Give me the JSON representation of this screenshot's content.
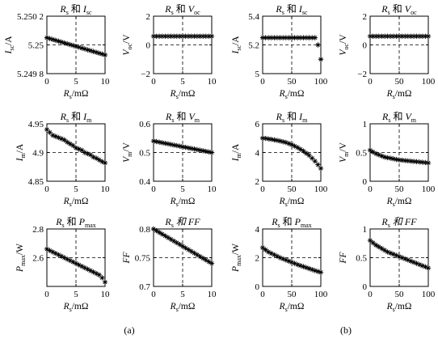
{
  "figure": {
    "caption_a": "(a)",
    "caption_b": "(b)"
  },
  "chart_data": [
    {
      "id": "a1",
      "type": "scatter",
      "title": "Rs 和 Isc",
      "xlabel": "Rs/mΩ",
      "ylabel": "Isc/A",
      "xlim": [
        0,
        10
      ],
      "ylim": [
        5.2498,
        5.2502
      ],
      "xticks": [
        0,
        5,
        10
      ],
      "yticks": [
        5.2498,
        5.25,
        5.2502
      ],
      "ytick_labels": [
        "5.249 8",
        "5.25",
        "5.250 2"
      ],
      "dashed_x": 5,
      "dashed_y": 5.25,
      "x": [
        0,
        0.5,
        1,
        1.5,
        2,
        2.5,
        3,
        3.5,
        4,
        4.5,
        5,
        5.5,
        6,
        6.5,
        7,
        7.5,
        8,
        8.5,
        9,
        9.5,
        10
      ],
      "y": [
        5.25005,
        5.250044,
        5.250038,
        5.250032,
        5.250026,
        5.25002,
        5.250014,
        5.250008,
        5.250002,
        5.249996,
        5.24999,
        5.249984,
        5.249978,
        5.249972,
        5.249966,
        5.24996,
        5.249954,
        5.249948,
        5.249942,
        5.249936,
        5.24993
      ]
    },
    {
      "id": "a2",
      "type": "scatter",
      "title": "Rs 和 Voc",
      "xlabel": "Rs/mΩ",
      "ylabel": "Voc/V",
      "xlim": [
        0,
        10
      ],
      "ylim": [
        -2,
        2
      ],
      "xticks": [
        0,
        5,
        10
      ],
      "yticks": [
        -2,
        0,
        2
      ],
      "dashed_x": 5,
      "dashed_y": 0,
      "x": [
        0,
        0.5,
        1,
        1.5,
        2,
        2.5,
        3,
        3.5,
        4,
        4.5,
        5,
        5.5,
        6,
        6.5,
        7,
        7.5,
        8,
        8.5,
        9,
        9.5,
        10
      ],
      "y": [
        0.6,
        0.6,
        0.6,
        0.6,
        0.6,
        0.6,
        0.6,
        0.6,
        0.6,
        0.6,
        0.6,
        0.6,
        0.6,
        0.6,
        0.6,
        0.6,
        0.6,
        0.6,
        0.6,
        0.6,
        0.6
      ]
    },
    {
      "id": "b1",
      "type": "scatter",
      "title": "Rs 和 Isc",
      "xlabel": "Rs/mΩ",
      "ylabel": "Isc/A",
      "xlim": [
        0,
        100
      ],
      "ylim": [
        5,
        5.4
      ],
      "xticks": [
        0,
        50,
        100
      ],
      "yticks": [
        5,
        5.2,
        5.4
      ],
      "dashed_x": 50,
      "dashed_y": 5.2,
      "x": [
        0,
        5,
        10,
        15,
        20,
        25,
        30,
        35,
        40,
        45,
        50,
        55,
        60,
        65,
        70,
        75,
        80,
        85,
        90,
        95,
        100
      ],
      "y": [
        5.25,
        5.25,
        5.25,
        5.25,
        5.25,
        5.25,
        5.25,
        5.25,
        5.25,
        5.25,
        5.25,
        5.25,
        5.25,
        5.25,
        5.25,
        5.25,
        5.25,
        5.25,
        5.25,
        5.2,
        5.1
      ]
    },
    {
      "id": "b2",
      "type": "scatter",
      "title": "Rs 和 Voc",
      "xlabel": "Rs/mΩ",
      "ylabel": "Voc/V",
      "xlim": [
        0,
        100
      ],
      "ylim": [
        -2,
        2
      ],
      "xticks": [
        0,
        50,
        100
      ],
      "yticks": [
        -2,
        0,
        2
      ],
      "dashed_x": 50,
      "dashed_y": 0,
      "x": [
        0,
        5,
        10,
        15,
        20,
        25,
        30,
        35,
        40,
        45,
        50,
        55,
        60,
        65,
        70,
        75,
        80,
        85,
        90,
        95,
        100
      ],
      "y": [
        0.6,
        0.6,
        0.6,
        0.6,
        0.6,
        0.6,
        0.6,
        0.6,
        0.6,
        0.6,
        0.6,
        0.6,
        0.6,
        0.6,
        0.6,
        0.6,
        0.6,
        0.6,
        0.6,
        0.6,
        0.6
      ]
    },
    {
      "id": "a3",
      "type": "scatter",
      "title": "Rs 和 Im",
      "xlabel": "Rs/mΩ",
      "ylabel": "Im/A",
      "xlim": [
        0,
        10
      ],
      "ylim": [
        4.85,
        4.95
      ],
      "xticks": [
        0,
        5,
        10
      ],
      "yticks": [
        4.85,
        4.9,
        4.95
      ],
      "dashed_x": 5,
      "dashed_y": 4.9,
      "x": [
        0,
        0.5,
        1,
        1.5,
        2,
        2.5,
        3,
        3.5,
        4,
        4.5,
        5,
        5.5,
        6,
        6.5,
        7,
        7.5,
        8,
        8.5,
        9,
        9.5,
        10
      ],
      "y": [
        4.94,
        4.935,
        4.93,
        4.928,
        4.926,
        4.924,
        4.922,
        4.918,
        4.915,
        4.912,
        4.908,
        4.906,
        4.904,
        4.9,
        4.898,
        4.896,
        4.892,
        4.89,
        4.887,
        4.884,
        4.882
      ]
    },
    {
      "id": "a4",
      "type": "scatter",
      "title": "Rs 和 Vm",
      "xlabel": "Rs/mΩ",
      "ylabel": "Vm/V",
      "xlim": [
        0,
        10
      ],
      "ylim": [
        0.4,
        0.6
      ],
      "xticks": [
        0,
        5,
        10
      ],
      "yticks": [
        0.4,
        0.5,
        0.6
      ],
      "dashed_x": 5,
      "dashed_y": 0.5,
      "x": [
        0,
        0.5,
        1,
        1.5,
        2,
        2.5,
        3,
        3.5,
        4,
        4.5,
        5,
        5.5,
        6,
        6.5,
        7,
        7.5,
        8,
        8.5,
        9,
        9.5,
        10
      ],
      "y": [
        0.54,
        0.538,
        0.536,
        0.534,
        0.532,
        0.53,
        0.528,
        0.526,
        0.524,
        0.522,
        0.52,
        0.518,
        0.516,
        0.514,
        0.512,
        0.51,
        0.508,
        0.506,
        0.504,
        0.502,
        0.5
      ]
    },
    {
      "id": "b3",
      "type": "scatter",
      "title": "Rs 和 Im",
      "xlabel": "Rs/mΩ",
      "ylabel": "Im/A",
      "xlim": [
        0,
        100
      ],
      "ylim": [
        2,
        6
      ],
      "xticks": [
        0,
        50,
        100
      ],
      "yticks": [
        2,
        4,
        6
      ],
      "dashed_x": 50,
      "dashed_y": 4,
      "x": [
        0,
        5,
        10,
        15,
        20,
        25,
        30,
        35,
        40,
        45,
        50,
        55,
        60,
        65,
        70,
        75,
        80,
        85,
        90,
        95,
        100
      ],
      "y": [
        5.0,
        4.98,
        4.95,
        4.92,
        4.88,
        4.84,
        4.8,
        4.75,
        4.7,
        4.62,
        4.55,
        4.45,
        4.35,
        4.22,
        4.1,
        3.95,
        3.8,
        3.6,
        3.4,
        3.15,
        2.9
      ]
    },
    {
      "id": "b4",
      "type": "scatter",
      "title": "Rs 和 Vm",
      "xlabel": "Rs/mΩ",
      "ylabel": "Vm/V",
      "xlim": [
        0,
        100
      ],
      "ylim": [
        0,
        1
      ],
      "xticks": [
        0,
        50,
        100
      ],
      "yticks": [
        0,
        0.5,
        1
      ],
      "dashed_x": 50,
      "dashed_y": 0.5,
      "x": [
        0,
        5,
        10,
        15,
        20,
        25,
        30,
        35,
        40,
        45,
        50,
        55,
        60,
        65,
        70,
        75,
        80,
        85,
        90,
        95,
        100
      ],
      "y": [
        0.54,
        0.51,
        0.48,
        0.46,
        0.44,
        0.42,
        0.41,
        0.4,
        0.39,
        0.38,
        0.37,
        0.365,
        0.36,
        0.355,
        0.35,
        0.345,
        0.34,
        0.335,
        0.33,
        0.325,
        0.32
      ]
    },
    {
      "id": "a5",
      "type": "scatter",
      "title": "Rs 和 Pmax",
      "xlabel": "Rs/mΩ",
      "ylabel": "Pmax/W",
      "xlim": [
        0,
        10
      ],
      "ylim": [
        2.4,
        2.8
      ],
      "xticks": [
        0,
        5,
        10
      ],
      "yticks": [
        2.6,
        2.8
      ],
      "dashed_x": 5,
      "dashed_y": 2.6,
      "x": [
        0,
        0.5,
        1,
        1.5,
        2,
        2.5,
        3,
        3.5,
        4,
        4.5,
        5,
        5.5,
        6,
        6.5,
        7,
        7.5,
        8,
        8.5,
        9,
        9.5,
        10
      ],
      "y": [
        2.66,
        2.65,
        2.64,
        2.63,
        2.62,
        2.61,
        2.6,
        2.59,
        2.58,
        2.57,
        2.56,
        2.55,
        2.54,
        2.53,
        2.52,
        2.51,
        2.5,
        2.49,
        2.48,
        2.46,
        2.43
      ]
    },
    {
      "id": "a6",
      "type": "scatter",
      "title": "Rs 和 FF",
      "xlabel": "Rs/mΩ",
      "ylabel": "FF",
      "xlim": [
        0,
        10
      ],
      "ylim": [
        0.7,
        0.8
      ],
      "xticks": [
        0,
        5,
        10
      ],
      "yticks": [
        0.7,
        0.75,
        0.8
      ],
      "dashed_x": 5,
      "dashed_y": 0.75,
      "x": [
        0,
        0.5,
        1,
        1.5,
        2,
        2.5,
        3,
        3.5,
        4,
        4.5,
        5,
        5.5,
        6,
        6.5,
        7,
        7.5,
        8,
        8.5,
        9,
        9.5,
        10
      ],
      "y": [
        0.8,
        0.797,
        0.794,
        0.791,
        0.788,
        0.785,
        0.782,
        0.779,
        0.776,
        0.773,
        0.77,
        0.767,
        0.764,
        0.761,
        0.758,
        0.755,
        0.752,
        0.749,
        0.746,
        0.743,
        0.74
      ]
    },
    {
      "id": "b5",
      "type": "scatter",
      "title": "Rs 和 Pmax",
      "xlabel": "Rs/mΩ",
      "ylabel": "Pmax/W",
      "xlim": [
        0,
        100
      ],
      "ylim": [
        0,
        4
      ],
      "xticks": [
        0,
        50,
        100
      ],
      "yticks": [
        0,
        2,
        4
      ],
      "dashed_x": 50,
      "dashed_y": 2,
      "x": [
        0,
        5,
        10,
        15,
        20,
        25,
        30,
        35,
        40,
        45,
        50,
        55,
        60,
        65,
        70,
        75,
        80,
        85,
        90,
        95,
        100
      ],
      "y": [
        2.7,
        2.55,
        2.4,
        2.3,
        2.2,
        2.1,
        2.0,
        1.92,
        1.84,
        1.76,
        1.68,
        1.6,
        1.52,
        1.45,
        1.38,
        1.31,
        1.24,
        1.17,
        1.1,
        1.04,
        0.98
      ]
    },
    {
      "id": "b6",
      "type": "scatter",
      "title": "Rs 和 FF",
      "xlabel": "Rs/mΩ",
      "ylabel": "FF",
      "xlim": [
        0,
        100
      ],
      "ylim": [
        0,
        1
      ],
      "xticks": [
        0,
        50,
        100
      ],
      "yticks": [
        0,
        0.5,
        1
      ],
      "dashed_x": 50,
      "dashed_y": 0.5,
      "x": [
        0,
        5,
        10,
        15,
        20,
        25,
        30,
        35,
        40,
        45,
        50,
        55,
        60,
        65,
        70,
        75,
        80,
        85,
        90,
        95,
        100
      ],
      "y": [
        0.8,
        0.76,
        0.72,
        0.69,
        0.66,
        0.63,
        0.6,
        0.58,
        0.56,
        0.54,
        0.52,
        0.5,
        0.48,
        0.46,
        0.44,
        0.42,
        0.4,
        0.38,
        0.36,
        0.34,
        0.32
      ]
    }
  ]
}
